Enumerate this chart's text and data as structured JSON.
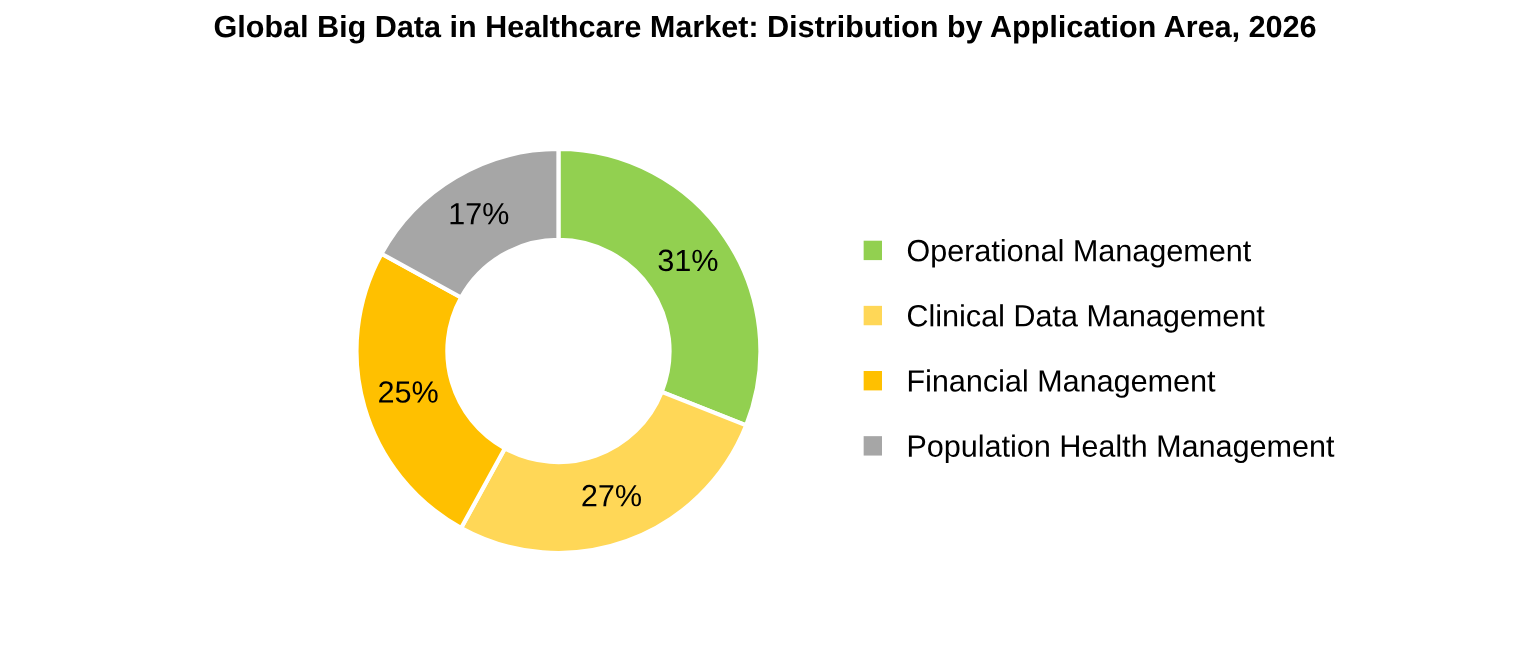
{
  "chart_data": {
    "type": "donut",
    "title": "Global Big Data in Healthcare Market: Distribution by Application Area, 2026",
    "categories": [
      "Operational Management",
      "Clinical Data Management",
      "Financial Management",
      "Population Health Management"
    ],
    "values": [
      31,
      27,
      25,
      17
    ],
    "colors": [
      "#92d050",
      "#ffd757",
      "#ffc000",
      "#a6a6a6"
    ],
    "value_labels": [
      "31%",
      "27%",
      "25%",
      "17%"
    ],
    "legend": "right"
  }
}
